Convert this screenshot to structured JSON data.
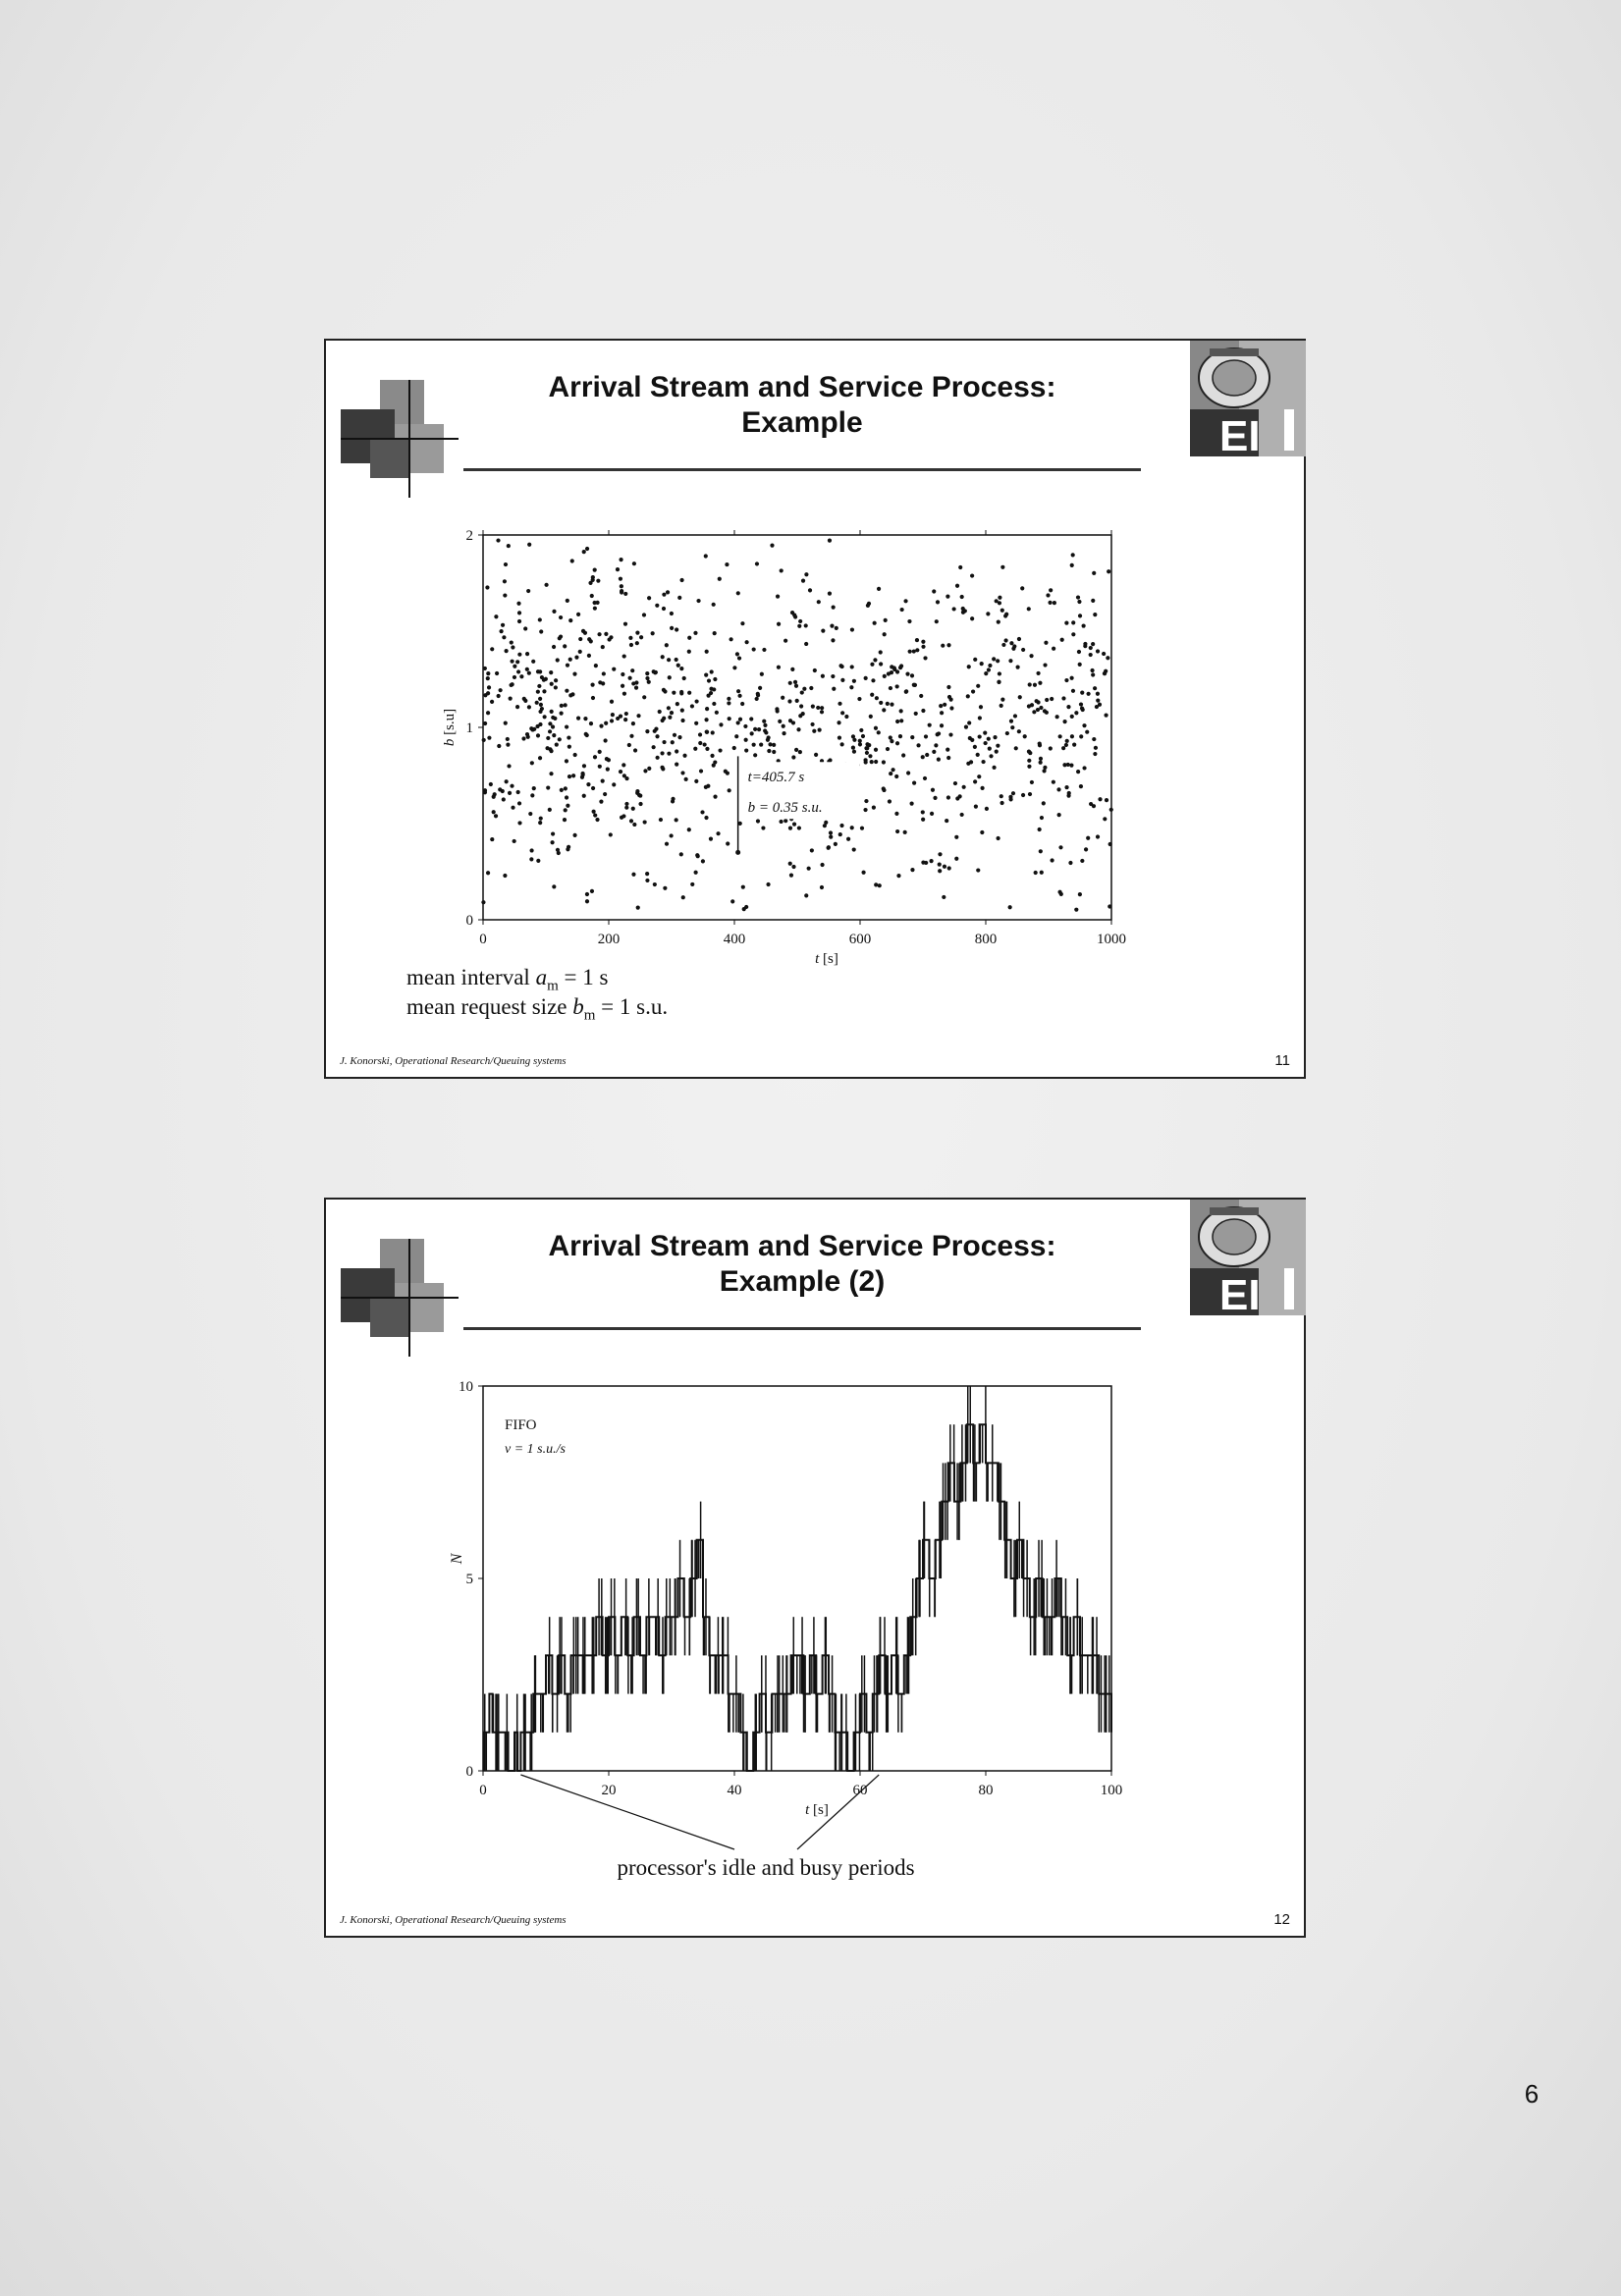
{
  "page_number": "6",
  "slides": [
    {
      "title_line1": "Arrival Stream and Service Process:",
      "title_line2": "Example",
      "footer_author": "J. Konorski, Operational Research/Queuing systems",
      "slide_number": "11",
      "notes": {
        "line1_prefix": "mean interval ",
        "line1_var": "a",
        "line1_sub": "m",
        "line1_suffix": " = 1 s",
        "line2_prefix": "mean request size ",
        "line2_var": "b",
        "line2_sub": "m",
        "line2_suffix": " = 1 s.u."
      }
    },
    {
      "title_line1": "Arrival Stream and Service Process:",
      "title_line2": "Example (2)",
      "footer_author": "J. Konorski, Operational Research/Queuing systems",
      "slide_number": "12",
      "caption": "processor's idle and busy periods"
    }
  ],
  "chart_data": [
    {
      "type": "scatter",
      "ylabel_var": "b",
      "ylabel_unit": " [s.u]",
      "xlabel_var": "t",
      "xlabel_unit": " [s]",
      "xlim": [
        0,
        1000
      ],
      "ylim": [
        0,
        2
      ],
      "xticks": [
        "0",
        "200",
        "400",
        "600",
        "800",
        "1000"
      ],
      "yticks": [
        "0",
        "1",
        "2"
      ],
      "annotation_line1": "t=405.7 s",
      "annotation_line2": "b = 0.35 s.u.",
      "annotation_point": {
        "x": 405.7,
        "y": 0.35
      },
      "points_note": "approximately 1000 random points, uniformly spread in t (0-1000), b roughly uniform between 0 and 2 with denser band near 0.5-1.3",
      "color": "#111111"
    },
    {
      "type": "line",
      "step": true,
      "ylabel": "N",
      "xlabel_var": "t",
      "xlabel_unit": " [s]",
      "xlim": [
        0,
        100
      ],
      "ylim": [
        0,
        10
      ],
      "xticks": [
        "0",
        "20",
        "40",
        "60",
        "80",
        "100"
      ],
      "yticks": [
        "0",
        "5",
        "10"
      ],
      "legend_line1": "FIFO",
      "legend_line2": "v = 1 s.u./s",
      "x": [
        0,
        1,
        1.5,
        2,
        3,
        4,
        5,
        5.5,
        6,
        7,
        8,
        9,
        10,
        11,
        12,
        13,
        14,
        15,
        16,
        17,
        18,
        19,
        20,
        21,
        22,
        23,
        24,
        25,
        26,
        27,
        28,
        29,
        30,
        31,
        32,
        33,
        34,
        35,
        36,
        37,
        38,
        39,
        40,
        41,
        42,
        43,
        44,
        45,
        46,
        47,
        48,
        49,
        50,
        51,
        52,
        53,
        54,
        55,
        56,
        57,
        58,
        59,
        60,
        61,
        62,
        63,
        64,
        65,
        66,
        67,
        68,
        69,
        70,
        71,
        72,
        73,
        74,
        75,
        76,
        77,
        78,
        79,
        80,
        81,
        82,
        83,
        84,
        85,
        86,
        87,
        88,
        89,
        90,
        91,
        92,
        93,
        94,
        95,
        96,
        97,
        98,
        99,
        100
      ],
      "y": [
        1,
        2,
        1,
        1,
        1,
        0,
        1,
        0,
        1,
        1,
        2,
        2,
        3,
        2,
        3,
        2,
        3,
        3,
        3,
        3,
        4,
        3,
        4,
        3,
        4,
        3,
        4,
        3,
        4,
        4,
        3,
        4,
        4,
        5,
        4,
        5,
        6,
        4,
        3,
        3,
        3,
        2,
        2,
        1,
        0,
        1,
        2,
        1,
        2,
        2,
        2,
        3,
        3,
        2,
        3,
        2,
        3,
        2,
        1,
        1,
        0,
        1,
        2,
        1,
        2,
        3,
        2,
        3,
        2,
        3,
        4,
        5,
        6,
        5,
        6,
        7,
        8,
        7,
        8,
        9,
        8,
        9,
        8,
        8,
        7,
        6,
        5,
        6,
        5,
        4,
        5,
        4,
        4,
        5,
        4,
        3,
        4,
        3,
        3,
        3,
        2,
        2,
        1
      ],
      "color": "#111111"
    }
  ]
}
